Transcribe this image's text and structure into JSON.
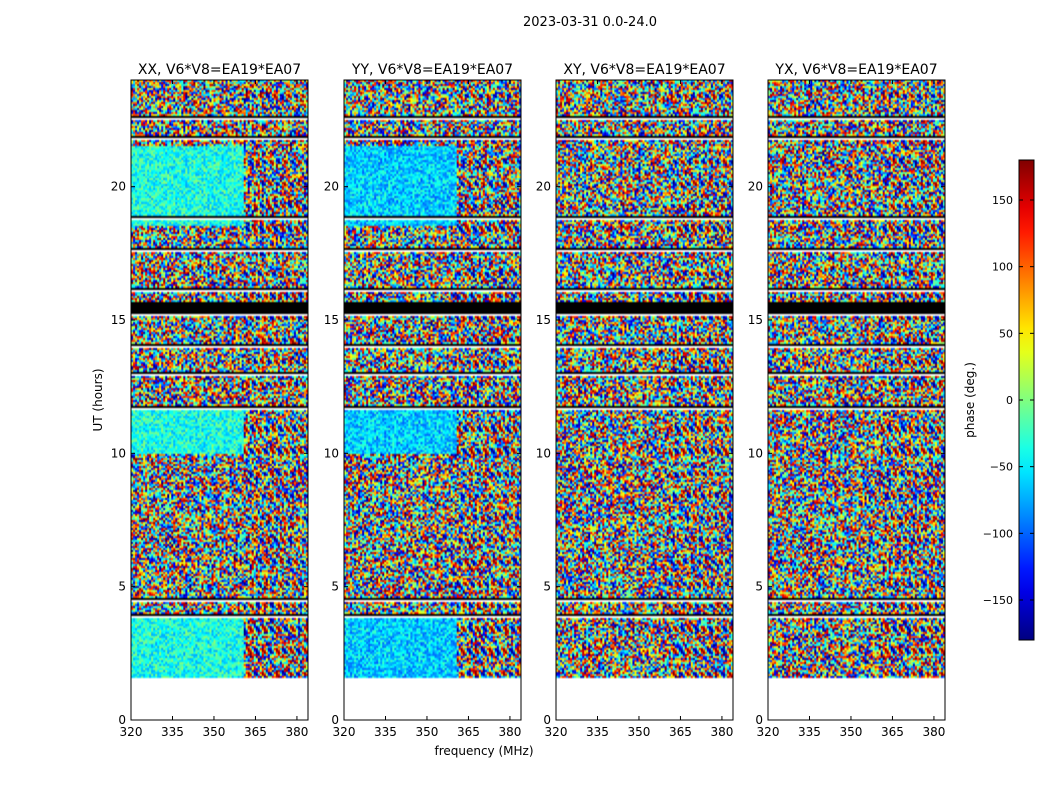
{
  "chart_data": {
    "type": "heatmap",
    "suptitle": "2023-03-31 0.0-24.0",
    "xlabel": "frequency (MHz)",
    "ylabel": "UT (hours)",
    "xlim": [
      320,
      384
    ],
    "ylim": [
      0,
      24
    ],
    "xticks": [
      320,
      335,
      350,
      365,
      380
    ],
    "yticks": [
      0,
      5,
      10,
      15,
      20
    ],
    "panels": [
      {
        "title": "XX, V6*V8=EA19*EA07",
        "pol": "XX"
      },
      {
        "title": "YY, V6*V8=EA19*EA07",
        "pol": "YY"
      },
      {
        "title": "XY, V6*V8=EA19*EA07",
        "pol": "XY"
      },
      {
        "title": "YX, V6*V8=EA19*EA07",
        "pol": "YX"
      }
    ],
    "data_start_hours": 1.6,
    "data_end_hours": 24,
    "flagged_hours": [
      [
        15.4,
        15.7
      ]
    ],
    "blank_gap_hours": [
      3.9,
      4.5,
      11.7,
      13.0,
      14.0,
      15.2,
      16.1,
      17.6,
      18.8,
      21.8,
      22.6
    ],
    "colorbar": {
      "label": "phase (deg.)",
      "ticks": [
        150,
        100,
        50,
        0,
        -50,
        -100,
        -150
      ],
      "ticklabels": [
        "150",
        "100",
        "50",
        "0",
        "−50",
        "−100",
        "−150"
      ],
      "vmin": -180,
      "vmax": 180,
      "cmap": "jet"
    }
  }
}
